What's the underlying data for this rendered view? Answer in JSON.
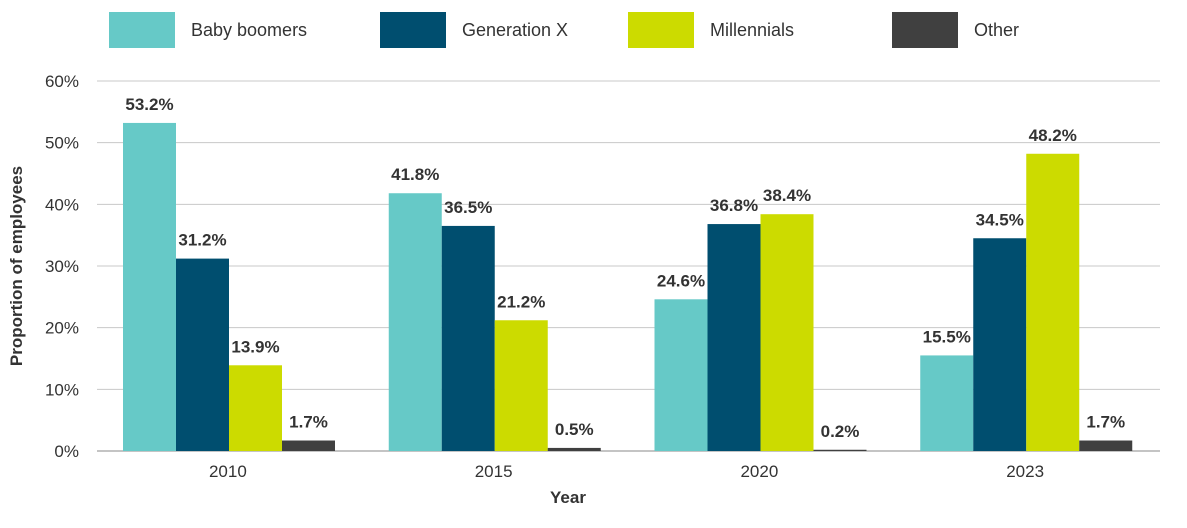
{
  "chart_data": {
    "type": "bar",
    "title": "",
    "xlabel": "Year",
    "ylabel": "Proportion of employees",
    "categories": [
      "2010",
      "2015",
      "2020",
      "2023"
    ],
    "ylim": [
      0,
      60
    ],
    "yticks": [
      0,
      10,
      20,
      30,
      40,
      50,
      60
    ],
    "ytick_labels": [
      "0%",
      "10%",
      "20%",
      "30%",
      "40%",
      "50%",
      "60%"
    ],
    "value_suffix": "%",
    "grid": true,
    "legend_position": "top",
    "series": [
      {
        "name": "Baby boomers",
        "color": "#66c9c7",
        "values": [
          53.2,
          41.8,
          24.6,
          15.5
        ],
        "labels": [
          "53.2%",
          "41.8%",
          "24.6%",
          "15.5%"
        ]
      },
      {
        "name": "Generation X",
        "color": "#004e6f",
        "values": [
          31.2,
          36.5,
          36.8,
          34.5
        ],
        "labels": [
          "31.2%",
          "36.5%",
          "36.8%",
          "34.5%"
        ]
      },
      {
        "name": "Millennials",
        "color": "#ccdb00",
        "values": [
          13.9,
          21.2,
          38.4,
          48.2
        ],
        "labels": [
          "13.9%",
          "21.2%",
          "38.4%",
          "48.2%"
        ]
      },
      {
        "name": "Other",
        "color": "#404040",
        "values": [
          1.7,
          0.5,
          0.2,
          1.7
        ],
        "labels": [
          "1.7%",
          "0.5%",
          "0.2%",
          "1.7%"
        ]
      }
    ]
  }
}
